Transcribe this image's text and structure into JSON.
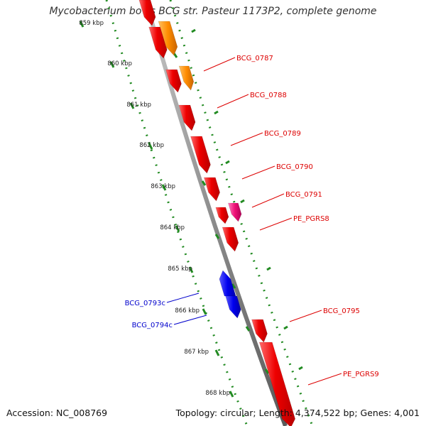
{
  "title": "Mycobacterium bovis BCG str. Pasteur 1173P2, complete genome",
  "accession": "Accession: NC_008769",
  "summary": "Topology: circular; Length: 4,374,522 bp; Genes: 4,001",
  "colors": {
    "forward_gene": "#ee0000",
    "orange_gene": "#ff8c00",
    "pink_gene": "#ee1177",
    "reverse_gene": "#0000ee",
    "backbone": "#8a8a8a",
    "scale": "#228b22",
    "label_forward": "#dd0000",
    "label_reverse": "#0000cc"
  },
  "ticks": [
    "859 kbp",
    "860 kbp",
    "861 kbp",
    "862 kbp",
    "863 kbp",
    "864 kbp",
    "865 kbp",
    "866 kbp",
    "867 kbp",
    "868 kbp"
  ],
  "gene_labels_forward": [
    "BCG_0787",
    "BCG_0788",
    "BCG_0789",
    "BCG_0790",
    "BCG_0791",
    "PE_PGRS8",
    "BCG_0795",
    "PE_PGRS9"
  ],
  "gene_labels_reverse": [
    "BCG_0793c",
    "BCG_0794c"
  ]
}
